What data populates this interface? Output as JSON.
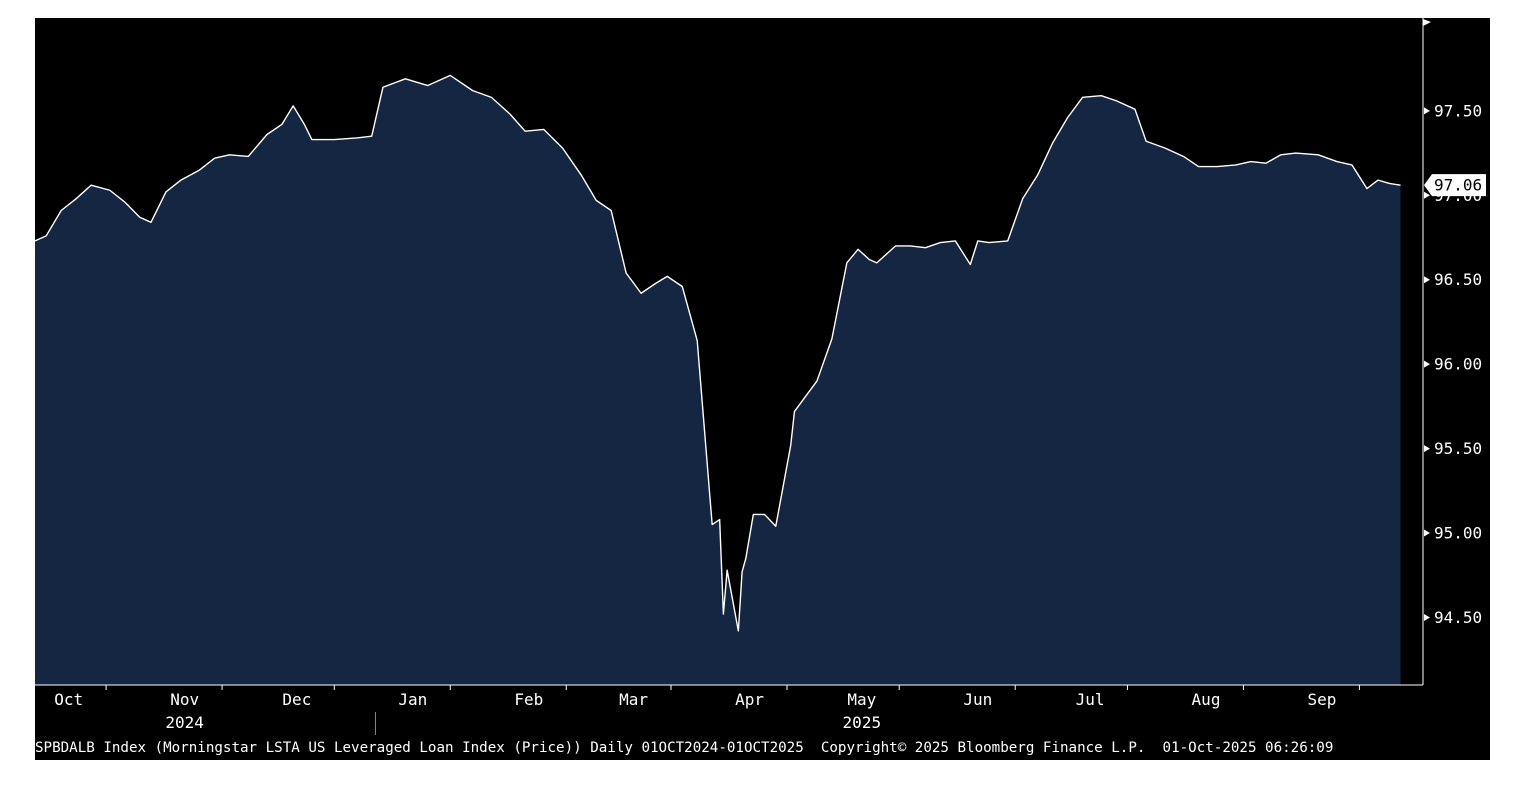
{
  "footer": {
    "description": "SPBDALB Index (Morningstar LSTA US Leveraged Loan Index (Price)) Daily 01OCT2024-01OCT2025",
    "copyright": "Copyright© 2025 Bloomberg Finance L.P.",
    "timestamp": "01-Oct-2025 06:26:09"
  },
  "colors": {
    "background": "#000000",
    "area_fill": "#142641",
    "line": "#ffffff",
    "axis": "#ffffff",
    "last_value_badge_bg": "#ffffff",
    "last_value_badge_text": "#000000"
  },
  "chart_data": {
    "type": "area",
    "ticker": "SPBDALB Index",
    "series": [
      {
        "name": "Morningstar LSTA US Leveraged Loan Index (Price)",
        "x": [
          "2024-10-01",
          "2024-10-04",
          "2024-10-08",
          "2024-10-12",
          "2024-10-16",
          "2024-10-21",
          "2024-10-25",
          "2024-10-29",
          "2024-11-01",
          "2024-11-05",
          "2024-11-09",
          "2024-11-14",
          "2024-11-18",
          "2024-11-22",
          "2024-11-27",
          "2024-12-02",
          "2024-12-06",
          "2024-12-09",
          "2024-12-12",
          "2024-12-14",
          "2024-12-17",
          "2024-12-20",
          "2024-12-26",
          "2024-12-30",
          "2025-01-02",
          "2025-01-08",
          "2025-01-14",
          "2025-01-20",
          "2025-01-26",
          "2025-01-31",
          "2025-02-05",
          "2025-02-09",
          "2025-02-14",
          "2025-02-19",
          "2025-02-24",
          "2025-02-28",
          "2025-03-04",
          "2025-03-08",
          "2025-03-12",
          "2025-03-16",
          "2025-03-19",
          "2025-03-23",
          "2025-03-27",
          "2025-03-31",
          "2025-04-02",
          "2025-04-03",
          "2025-04-04",
          "2025-04-07",
          "2025-04-08",
          "2025-04-09",
          "2025-04-11",
          "2025-04-14",
          "2025-04-17",
          "2025-04-21",
          "2025-04-22",
          "2025-04-24",
          "2025-04-28",
          "2025-05-02",
          "2025-05-06",
          "2025-05-09",
          "2025-05-12",
          "2025-05-14",
          "2025-05-19",
          "2025-05-23",
          "2025-05-27",
          "2025-05-31",
          "2025-06-04",
          "2025-06-08",
          "2025-06-10",
          "2025-06-13",
          "2025-06-18",
          "2025-06-22",
          "2025-06-26",
          "2025-06-30",
          "2025-07-04",
          "2025-07-08",
          "2025-07-13",
          "2025-07-17",
          "2025-07-22",
          "2025-07-25",
          "2025-07-30",
          "2025-08-04",
          "2025-08-08",
          "2025-08-13",
          "2025-08-18",
          "2025-08-22",
          "2025-08-26",
          "2025-08-30",
          "2025-09-03",
          "2025-09-09",
          "2025-09-14",
          "2025-09-18",
          "2025-09-22",
          "2025-09-25",
          "2025-09-28",
          "2025-10-01"
        ],
        "values": [
          96.73,
          96.76,
          96.91,
          96.98,
          97.06,
          97.03,
          96.96,
          96.87,
          96.84,
          97.02,
          97.09,
          97.15,
          97.22,
          97.24,
          97.23,
          97.36,
          97.42,
          97.53,
          97.42,
          97.33,
          97.33,
          97.33,
          97.34,
          97.35,
          97.64,
          97.69,
          97.65,
          97.71,
          97.62,
          97.58,
          97.48,
          97.38,
          97.39,
          97.28,
          97.12,
          96.97,
          96.91,
          96.54,
          96.42,
          96.48,
          96.52,
          96.46,
          96.14,
          95.05,
          95.08,
          94.52,
          94.78,
          94.42,
          94.77,
          94.85,
          95.11,
          95.11,
          95.04,
          95.52,
          95.72,
          95.78,
          95.9,
          96.15,
          96.6,
          96.68,
          96.62,
          96.6,
          96.7,
          96.7,
          96.69,
          96.72,
          96.73,
          96.59,
          96.73,
          96.72,
          96.73,
          96.98,
          97.12,
          97.31,
          97.46,
          97.58,
          97.59,
          97.56,
          97.51,
          97.32,
          97.28,
          97.23,
          97.17,
          97.17,
          97.18,
          97.2,
          97.19,
          97.24,
          97.25,
          97.24,
          97.2,
          97.18,
          97.04,
          97.09,
          97.07,
          97.06
        ]
      }
    ],
    "last_value": "97.06",
    "x_labels": [
      {
        "label": "Oct",
        "date": "2024-10-10"
      },
      {
        "label": "Nov",
        "date": "2024-11-10"
      },
      {
        "label": "Dec",
        "date": "2024-12-10"
      },
      {
        "label": "Jan",
        "date": "2025-01-10"
      },
      {
        "label": "Feb",
        "date": "2025-02-10"
      },
      {
        "label": "Mar",
        "date": "2025-03-10"
      },
      {
        "label": "Apr",
        "date": "2025-04-10"
      },
      {
        "label": "May",
        "date": "2025-05-10"
      },
      {
        "label": "Jun",
        "date": "2025-06-10"
      },
      {
        "label": "Jul",
        "date": "2025-07-10"
      },
      {
        "label": "Aug",
        "date": "2025-08-10"
      },
      {
        "label": "Sep",
        "date": "2025-09-10"
      }
    ],
    "x_ticks": [
      "2024-10-20",
      "2024-11-20",
      "2024-12-20",
      "2025-01-20",
      "2025-02-20",
      "2025-03-20",
      "2025-04-20",
      "2025-05-20",
      "2025-06-20",
      "2025-07-20",
      "2025-08-20",
      "2025-09-20"
    ],
    "year_labels": [
      {
        "label": "2024",
        "date": "2024-11-10"
      },
      {
        "label": "2025",
        "date": "2025-05-10"
      }
    ],
    "year_divider": "2024-12-31",
    "y_ticks": [
      "97.50",
      "97.00",
      "96.50",
      "96.00",
      "95.50",
      "95.00",
      "94.50"
    ],
    "ylim": [
      94.1,
      98.05
    ],
    "xlim": [
      "2024-10-01",
      "2025-10-07"
    ],
    "y_axis_position": "right",
    "grid": false
  }
}
